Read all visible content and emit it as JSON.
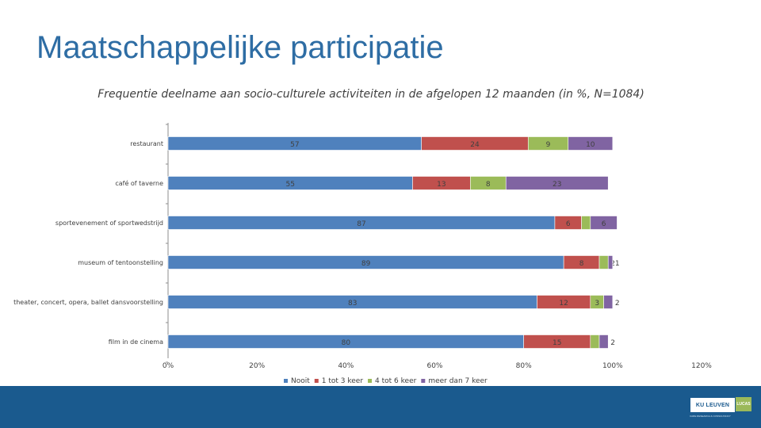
{
  "header": {
    "title": "Maatschappelijke participatie"
  },
  "chart_data": {
    "type": "bar",
    "orientation": "horizontal",
    "stacked": true,
    "title": "Frequentie deelname aan socio-culturele activiteiten in de afgelopen 12 maanden (in %, N=1084)",
    "categories": [
      "restaurant",
      "café of taverne",
      "sportevenement of sportwedstrijd",
      "museum of tentoonstelling",
      "theater, concert, opera, ballet dansvoorstelling",
      "film in de cinema"
    ],
    "series": [
      {
        "name": "Nooit",
        "color": "#4F81BD",
        "values": [
          57,
          55,
          87,
          89,
          83,
          80
        ]
      },
      {
        "name": "1 tot 3 keer",
        "color": "#C0504D",
        "values": [
          24,
          13,
          6,
          8,
          12,
          15
        ]
      },
      {
        "name": "4 tot 6 keer",
        "color": "#9BBB59",
        "values": [
          9,
          8,
          2,
          2,
          3,
          2
        ]
      },
      {
        "name": "meer dan 7 keer",
        "color": "#8064A2",
        "values": [
          10,
          23,
          6,
          1,
          2,
          2
        ]
      }
    ],
    "xlim": [
      0,
      120
    ],
    "xticks": [
      "0%",
      "20%",
      "40%",
      "60%",
      "80%",
      "100%",
      "120%"
    ],
    "legend_position": "bottom"
  },
  "footer": {
    "logo_text": "KU LEUVEN",
    "logo_secondary": "LUCAS",
    "tagline": "CARE RESEARCH & CONSULTANCY"
  }
}
